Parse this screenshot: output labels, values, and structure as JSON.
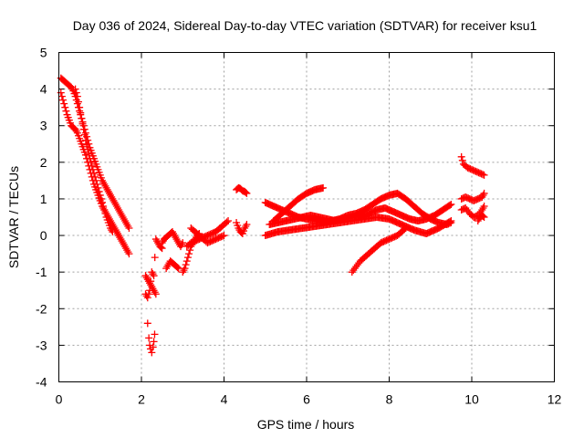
{
  "chart_data": {
    "type": "scatter",
    "title": "Day 036 of 2024, Sidereal Day-to-day VTEC variation (SDTVAR) for receiver ksu1",
    "xlabel": "GPS time / hours",
    "ylabel": "SDTVAR / TECUs",
    "xlim": [
      0,
      12
    ],
    "ylim": [
      -4,
      5
    ],
    "x_ticks": [
      "0",
      "2",
      "4",
      "6",
      "8",
      "10",
      "12"
    ],
    "y_ticks": [
      "-4",
      "-3",
      "-2",
      "-1",
      "0",
      "1",
      "2",
      "3",
      "4",
      "5"
    ],
    "grid": true,
    "marker": "+",
    "color": "#ff0000",
    "series": [
      {
        "x": [
          0.05,
          0.1,
          0.15,
          0.2,
          0.25,
          0.3,
          0.35,
          0.4,
          0.45,
          0.5,
          0.55,
          0.6,
          0.65,
          0.7,
          0.75,
          0.8,
          0.85,
          0.9,
          0.95,
          1.0,
          1.05,
          1.1,
          1.15,
          1.2,
          1.25,
          1.3,
          1.35,
          1.4,
          1.45,
          1.5,
          1.55,
          1.6,
          1.65,
          1.7
        ],
        "y": [
          4.3,
          4.25,
          4.2,
          4.15,
          4.1,
          4.05,
          3.95,
          3.8,
          3.6,
          3.4,
          3.2,
          3.0,
          2.8,
          2.6,
          2.4,
          2.25,
          2.1,
          1.95,
          1.8,
          1.65,
          1.5,
          1.4,
          1.3,
          1.2,
          1.1,
          1.0,
          0.9,
          0.8,
          0.7,
          0.6,
          0.5,
          0.4,
          0.3,
          0.2
        ]
      },
      {
        "x": [
          0.05,
          0.1,
          0.15,
          0.2,
          0.25,
          0.3,
          0.35,
          0.4,
          0.45,
          0.5,
          0.55,
          0.6,
          0.65,
          0.7,
          0.75,
          0.8,
          0.85,
          0.9,
          0.95,
          1.0,
          1.05,
          1.1,
          1.15,
          1.2,
          1.25,
          1.3,
          1.35,
          1.4,
          1.45,
          1.5,
          1.55,
          1.6,
          1.65,
          1.7
        ],
        "y": [
          3.9,
          3.7,
          3.5,
          3.3,
          3.15,
          3.0,
          2.95,
          2.9,
          2.8,
          2.65,
          2.5,
          2.35,
          2.2,
          2.0,
          1.8,
          1.6,
          1.4,
          1.25,
          1.1,
          0.95,
          0.8,
          0.7,
          0.6,
          0.5,
          0.4,
          0.3,
          0.2,
          0.1,
          0.0,
          -0.1,
          -0.2,
          -0.3,
          -0.4,
          -0.5
        ]
      },
      {
        "x": [
          0.4,
          0.45,
          0.5,
          0.55,
          0.6,
          0.65,
          0.7,
          0.75,
          0.8,
          0.85,
          0.9,
          0.95,
          1.0,
          1.05,
          1.1,
          1.15,
          1.2,
          1.25,
          1.3
        ],
        "y": [
          4.0,
          3.8,
          3.5,
          3.2,
          2.9,
          2.6,
          2.35,
          2.1,
          1.9,
          1.7,
          1.5,
          1.3,
          1.1,
          0.9,
          0.7,
          0.5,
          0.35,
          0.2,
          0.1
        ]
      },
      {
        "x": [
          2.1,
          2.15,
          2.2,
          2.25,
          2.3,
          2.35,
          2.1,
          2.15,
          2.2,
          2.25,
          2.3,
          2.35,
          2.4,
          2.45,
          2.5
        ],
        "y": [
          -1.1,
          -1.2,
          -1.3,
          -1.4,
          -1.5,
          -1.6,
          -1.6,
          -1.7,
          -1.5,
          -1.0,
          -1.1,
          -0.1,
          -0.2,
          -0.3,
          -0.35
        ]
      },
      {
        "x": [
          2.15,
          2.18,
          2.2,
          2.22,
          2.25,
          2.28,
          2.3,
          2.32
        ],
        "y": [
          -2.4,
          -2.8,
          -3.0,
          -3.1,
          -3.2,
          -3.05,
          -2.9,
          -2.7
        ]
      },
      {
        "x": [
          2.5,
          2.55,
          2.6,
          2.65,
          2.7,
          2.75,
          2.8,
          2.85,
          2.9,
          2.95,
          3.0
        ],
        "y": [
          -0.2,
          -0.1,
          -0.05,
          0.0,
          0.05,
          0.1,
          0.0,
          -0.1,
          -0.2,
          -0.3,
          -0.2
        ]
      },
      {
        "x": [
          2.6,
          2.65,
          2.7,
          2.75,
          2.8,
          2.85,
          2.9
        ],
        "y": [
          -0.9,
          -0.8,
          -0.7,
          -0.75,
          -0.8,
          -0.85,
          -0.9
        ]
      },
      {
        "x": [
          3.0,
          3.05,
          3.1,
          3.15,
          3.2,
          3.25,
          3.3,
          3.35,
          3.4
        ],
        "y": [
          -1.0,
          -0.9,
          -0.7,
          -0.5,
          -0.3,
          -0.2,
          -0.1,
          0.0,
          0.05
        ]
      },
      {
        "x": [
          3.1,
          3.2,
          3.3,
          3.4,
          3.5,
          3.6,
          3.7,
          3.8,
          3.9,
          4.0,
          4.1
        ],
        "y": [
          -0.3,
          -0.2,
          -0.15,
          -0.1,
          -0.05,
          0.0,
          0.05,
          0.1,
          0.2,
          0.3,
          0.4
        ]
      },
      {
        "x": [
          3.2,
          3.3,
          3.4,
          3.5,
          3.6,
          3.7,
          3.8,
          3.9,
          4.0
        ],
        "y": [
          0.2,
          0.1,
          0.0,
          -0.1,
          -0.2,
          -0.15,
          -0.1,
          -0.05,
          0.0
        ]
      },
      {
        "x": [
          4.3,
          4.35,
          4.4,
          4.45,
          4.5,
          4.55
        ],
        "y": [
          1.25,
          1.3,
          1.28,
          1.22,
          1.2,
          1.15
        ]
      },
      {
        "x": [
          4.3,
          4.35,
          4.4,
          4.45,
          4.5,
          4.55
        ],
        "y": [
          0.35,
          0.2,
          0.1,
          0.05,
          0.2,
          0.3
        ]
      },
      {
        "x": [
          5.1,
          5.3,
          5.5,
          5.7,
          5.9,
          6.1,
          6.3,
          6.5,
          6.7,
          6.9,
          7.1,
          7.3,
          7.5,
          7.7,
          7.9,
          8.1,
          8.3,
          8.5,
          8.7,
          8.9,
          9.1,
          9.3,
          9.5
        ],
        "y": [
          0.3,
          0.35,
          0.4,
          0.45,
          0.5,
          0.55,
          0.5,
          0.45,
          0.4,
          0.45,
          0.5,
          0.55,
          0.6,
          0.7,
          0.75,
          0.65,
          0.55,
          0.45,
          0.4,
          0.45,
          0.55,
          0.7,
          0.85
        ]
      },
      {
        "x": [
          5.2,
          5.4,
          5.6,
          5.8,
          6.0,
          6.2,
          6.4
        ],
        "y": [
          0.4,
          0.6,
          0.8,
          1.0,
          1.15,
          1.25,
          1.3
        ]
      },
      {
        "x": [
          5.0,
          5.2,
          5.4,
          5.6,
          5.8,
          6.0,
          6.2,
          6.4,
          6.6,
          6.8,
          7.0,
          7.2,
          7.4,
          7.6,
          7.8,
          8.0,
          8.2,
          8.4,
          8.6,
          8.8,
          9.0,
          9.2,
          9.4,
          9.5
        ],
        "y": [
          0.9,
          0.8,
          0.7,
          0.6,
          0.5,
          0.45,
          0.4,
          0.35,
          0.4,
          0.45,
          0.55,
          0.6,
          0.7,
          0.85,
          1.0,
          1.1,
          1.15,
          1.0,
          0.8,
          0.6,
          0.45,
          0.35,
          0.3,
          0.35
        ]
      },
      {
        "x": [
          5.0,
          5.3,
          5.6,
          5.9,
          6.2,
          6.5,
          6.8,
          7.1,
          7.4,
          7.7,
          8.0,
          8.3,
          8.6,
          8.9,
          9.2,
          9.5
        ],
        "y": [
          0.0,
          0.1,
          0.15,
          0.2,
          0.25,
          0.3,
          0.35,
          0.4,
          0.45,
          0.5,
          0.45,
          0.3,
          0.15,
          0.05,
          0.2,
          0.4
        ]
      },
      {
        "x": [
          7.1,
          7.2,
          7.3,
          7.4,
          7.5,
          7.6,
          7.7,
          7.8,
          7.9,
          8.0,
          8.1,
          8.2,
          8.3,
          8.4
        ],
        "y": [
          -1.0,
          -0.85,
          -0.7,
          -0.6,
          -0.5,
          -0.4,
          -0.3,
          -0.2,
          -0.15,
          -0.1,
          -0.05,
          0.0,
          0.1,
          0.2
        ]
      },
      {
        "x": [
          9.75,
          9.8,
          9.9,
          10.0,
          10.1,
          10.2,
          10.3
        ],
        "y": [
          2.15,
          1.95,
          1.85,
          1.8,
          1.75,
          1.7,
          1.65
        ]
      },
      {
        "x": [
          9.75,
          9.85,
          9.95,
          10.05,
          10.15,
          10.25,
          10.3
        ],
        "y": [
          1.0,
          1.05,
          1.0,
          0.95,
          1.0,
          1.05,
          1.15
        ]
      },
      {
        "x": [
          9.75,
          9.85,
          9.95,
          10.05,
          10.15,
          10.25,
          10.3
        ],
        "y": [
          0.7,
          0.75,
          0.6,
          0.5,
          0.55,
          0.7,
          0.8
        ]
      },
      {
        "x": [
          10.15,
          10.2,
          10.25,
          10.3
        ],
        "y": [
          0.4,
          0.5,
          0.55,
          0.5
        ]
      }
    ]
  }
}
